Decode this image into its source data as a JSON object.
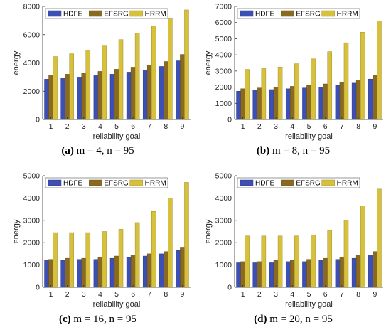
{
  "colors": {
    "HDFE": "#3b4fb4",
    "EFSRG": "#8a6a20",
    "HRRM": "#d6c03c"
  },
  "chart_data": [
    {
      "type": "bar",
      "caption_tag": "(a)",
      "caption_text": "m = 4, n = 95",
      "categories": [
        "1",
        "2",
        "3",
        "4",
        "5",
        "6",
        "7",
        "8",
        "9"
      ],
      "xlabel": "reliability goal",
      "ylabel": "energy",
      "ylim": [
        0,
        8000
      ],
      "yticks": [
        0,
        2000,
        4000,
        6000,
        8000
      ],
      "legend": "top",
      "series": [
        {
          "name": "HDFE",
          "values": [
            2850,
            2900,
            3000,
            3100,
            3200,
            3350,
            3500,
            3750,
            4150
          ]
        },
        {
          "name": "EFSRG",
          "values": [
            3150,
            3200,
            3300,
            3400,
            3550,
            3700,
            3850,
            4100,
            4600
          ]
        },
        {
          "name": "HRRM",
          "values": [
            4450,
            4650,
            4900,
            5250,
            5650,
            6100,
            6600,
            7150,
            7750
          ]
        }
      ]
    },
    {
      "type": "bar",
      "caption_tag": "(b)",
      "caption_text": "m = 8, n = 95",
      "categories": [
        "1",
        "2",
        "3",
        "4",
        "5",
        "6",
        "7",
        "8",
        "9"
      ],
      "xlabel": "reliability goal",
      "ylabel": "energy",
      "ylim": [
        0,
        7000
      ],
      "yticks": [
        0,
        1000,
        2000,
        3000,
        4000,
        5000,
        6000,
        7000
      ],
      "legend": "top",
      "series": [
        {
          "name": "HDFE",
          "values": [
            1750,
            1800,
            1850,
            1900,
            1950,
            2000,
            2100,
            2250,
            2500
          ]
        },
        {
          "name": "EFSRG",
          "values": [
            1900,
            1950,
            2000,
            2050,
            2100,
            2200,
            2300,
            2450,
            2750
          ]
        },
        {
          "name": "HRRM",
          "values": [
            3100,
            3150,
            3250,
            3450,
            3750,
            4200,
            4750,
            5400,
            6100
          ]
        }
      ]
    },
    {
      "type": "bar",
      "caption_tag": "(c)",
      "caption_text": "m = 16, n = 95",
      "categories": [
        "1",
        "2",
        "3",
        "4",
        "5",
        "6",
        "7",
        "8",
        "9"
      ],
      "xlabel": "reliability goal",
      "ylabel": "energy",
      "ylim": [
        0,
        5000
      ],
      "yticks": [
        0,
        1000,
        2000,
        3000,
        4000,
        5000
      ],
      "legend": "top",
      "series": [
        {
          "name": "HDFE",
          "values": [
            1200,
            1200,
            1250,
            1250,
            1300,
            1350,
            1400,
            1500,
            1650
          ]
        },
        {
          "name": "EFSRG",
          "values": [
            1250,
            1300,
            1300,
            1350,
            1400,
            1450,
            1500,
            1600,
            1800
          ]
        },
        {
          "name": "HRRM",
          "values": [
            2450,
            2450,
            2450,
            2500,
            2600,
            2900,
            3400,
            4000,
            4700
          ]
        }
      ]
    },
    {
      "type": "bar",
      "caption_tag": "(d)",
      "caption_text": "m = 20, n = 95",
      "categories": [
        "1",
        "2",
        "3",
        "4",
        "5",
        "6",
        "7",
        "8",
        "9"
      ],
      "xlabel": "reliability goal",
      "ylabel": "energy",
      "ylim": [
        0,
        5000
      ],
      "yticks": [
        0,
        1000,
        2000,
        3000,
        4000,
        5000
      ],
      "legend": "top",
      "series": [
        {
          "name": "HDFE",
          "values": [
            1100,
            1100,
            1100,
            1150,
            1150,
            1200,
            1250,
            1300,
            1450
          ]
        },
        {
          "name": "EFSRG",
          "values": [
            1150,
            1150,
            1200,
            1200,
            1250,
            1300,
            1350,
            1450,
            1600
          ]
        },
        {
          "name": "HRRM",
          "values": [
            2300,
            2300,
            2300,
            2300,
            2350,
            2550,
            3000,
            3650,
            4400
          ]
        }
      ]
    }
  ]
}
